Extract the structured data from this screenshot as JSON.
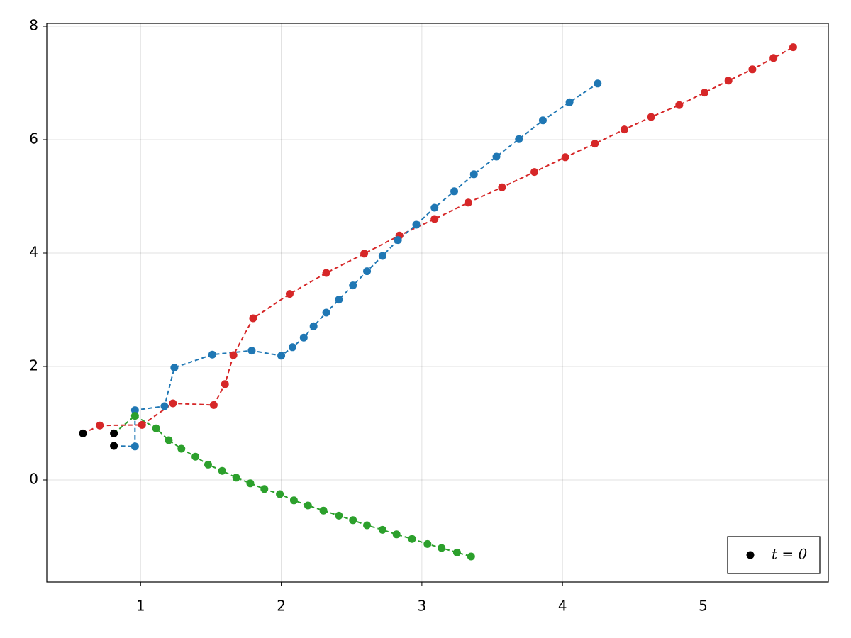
{
  "chart_data": {
    "type": "line",
    "xlim": [
      0.333,
      5.89
    ],
    "ylim": [
      -1.8,
      8.05
    ],
    "xticks": [
      1,
      2,
      3,
      4,
      5
    ],
    "yticks": [
      0,
      2,
      4,
      6,
      8
    ],
    "grid": true,
    "legend": "bottom-right",
    "series": [
      {
        "color": "#d62728",
        "line": "dashed",
        "x": [
          0.71,
          1.01,
          1.23,
          1.52,
          1.6,
          1.66,
          1.8,
          2.06,
          2.32,
          2.59,
          2.84,
          3.09,
          3.33,
          3.57,
          3.8,
          4.02,
          4.23,
          4.44,
          4.63,
          4.83,
          5.01,
          5.18,
          5.35,
          5.5,
          5.64
        ],
        "values": [
          0.96,
          0.97,
          1.35,
          1.32,
          1.69,
          2.2,
          2.85,
          3.28,
          3.65,
          3.99,
          4.31,
          4.6,
          4.89,
          5.16,
          5.43,
          5.69,
          5.93,
          6.18,
          6.4,
          6.61,
          6.83,
          7.04,
          7.24,
          7.44,
          7.63
        ]
      },
      {
        "color": "#1f77b4",
        "line": "dashed",
        "x": [
          0.96,
          0.96,
          1.17,
          1.24,
          1.51,
          1.79,
          2.0,
          2.08,
          2.16,
          2.23,
          2.32,
          2.41,
          2.51,
          2.61,
          2.72,
          2.83,
          2.96,
          3.09,
          3.23,
          3.37,
          3.53,
          3.69,
          3.86,
          4.05,
          4.25
        ],
        "values": [
          0.59,
          1.23,
          1.3,
          1.98,
          2.21,
          2.28,
          2.19,
          2.34,
          2.51,
          2.71,
          2.95,
          3.18,
          3.43,
          3.68,
          3.95,
          4.23,
          4.5,
          4.8,
          5.09,
          5.39,
          5.7,
          6.01,
          6.34,
          6.66,
          6.99
        ]
      },
      {
        "color": "#2ca02c",
        "line": "dashed",
        "x": [
          0.96,
          1.11,
          1.2,
          1.29,
          1.39,
          1.48,
          1.58,
          1.68,
          1.78,
          1.88,
          1.99,
          2.09,
          2.19,
          2.3,
          2.41,
          2.51,
          2.61,
          2.72,
          2.82,
          2.93,
          3.04,
          3.14,
          3.25,
          3.35
        ],
        "values": [
          1.13,
          0.91,
          0.7,
          0.55,
          0.41,
          0.27,
          0.16,
          0.04,
          -0.06,
          -0.16,
          -0.25,
          -0.36,
          -0.45,
          -0.54,
          -0.63,
          -0.71,
          -0.8,
          -0.88,
          -0.96,
          -1.04,
          -1.13,
          -1.2,
          -1.28,
          -1.35
        ]
      },
      {
        "name": "t = 0",
        "color": "#000000",
        "line": "none",
        "x": [
          0.59,
          0.81,
          0.81
        ],
        "values": [
          0.82,
          0.6,
          0.82
        ]
      }
    ]
  }
}
